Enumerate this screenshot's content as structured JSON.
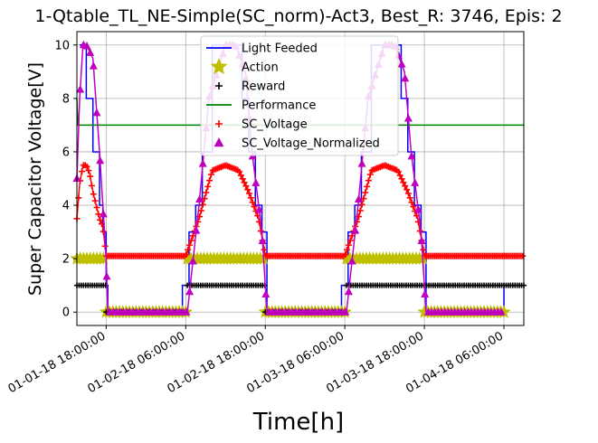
{
  "chart_data": {
    "type": "line",
    "title": "1-Qtable_TL_NE-Simple(SC_norm)-Act3, Best_R: 3746, Epis: 2",
    "xlabel": "Time[h]",
    "ylabel": "Super Capacitor Voltage[V]",
    "x_range": [
      "2018-01-01 13:35",
      "2018-01-04 09:00"
    ],
    "ylim": [
      -0.5,
      10.5
    ],
    "grid": true,
    "legend_position": "top-center",
    "x_tick_values": [
      "2018-01-01 18:00",
      "2018-01-02 06:00",
      "2018-01-02 18:00",
      "2018-01-03 06:00",
      "2018-01-03 18:00",
      "2018-01-04 06:00"
    ],
    "x_tick_labels": [
      "01-01-18 18:00:00",
      "01-02-18 06:00:00",
      "01-02-18 18:00:00",
      "01-03-18 06:00:00",
      "01-03-18 18:00:00",
      "01-04-18 06:00:00"
    ],
    "y_ticks": [
      0,
      2,
      4,
      6,
      8,
      10
    ],
    "series": [
      {
        "name": "Light Feeded",
        "color": "#0000ff",
        "style": "step",
        "x": [
          "2018-01-01 14:00",
          "2018-01-01 15:00",
          "2018-01-01 16:00",
          "2018-01-01 17:00",
          "2018-01-01 17:30",
          "2018-01-01 18:00",
          "2018-01-01 18:15",
          "2018-01-02 05:30",
          "2018-01-02 06:30",
          "2018-01-02 07:30",
          "2018-01-02 08:30",
          "2018-01-02 10:00",
          "2018-01-02 12:00",
          "2018-01-02 14:30",
          "2018-01-02 15:30",
          "2018-01-02 16:30",
          "2018-01-02 17:30",
          "2018-01-02 18:15",
          "2018-01-03 05:30",
          "2018-01-03 06:30",
          "2018-01-03 07:30",
          "2018-01-03 08:30",
          "2018-01-03 10:00",
          "2018-01-03 12:00",
          "2018-01-03 14:30",
          "2018-01-03 15:30",
          "2018-01-03 16:30",
          "2018-01-03 17:30",
          "2018-01-03 18:15",
          "2018-01-04 06:00"
        ],
        "y": [
          10,
          8,
          6,
          4,
          3,
          1,
          0,
          1,
          3,
          4,
          6,
          10,
          10,
          8,
          6,
          4,
          3,
          0,
          1,
          3,
          4,
          6,
          10,
          10,
          8,
          6,
          4,
          3,
          0,
          1
        ]
      },
      {
        "name": "Action",
        "color": "#bfbf00",
        "marker": "star",
        "segments": [
          {
            "from": "2018-01-01 13:35",
            "to": "2018-01-01 18:00",
            "y": 2
          },
          {
            "from": "2018-01-01 18:00",
            "to": "2018-01-02 06:15",
            "y": 0
          },
          {
            "from": "2018-01-02 06:15",
            "to": "2018-01-02 18:00",
            "y": 2
          },
          {
            "from": "2018-01-02 18:00",
            "to": "2018-01-03 06:15",
            "y": 0
          },
          {
            "from": "2018-01-03 06:15",
            "to": "2018-01-03 18:00",
            "y": 2
          },
          {
            "from": "2018-01-03 18:00",
            "to": "2018-01-04 06:15",
            "y": 0
          }
        ]
      },
      {
        "name": "Reward",
        "color": "#000000",
        "marker": "plus",
        "segments": [
          {
            "from": "2018-01-01 13:35",
            "to": "2018-01-01 18:00",
            "y": 1
          },
          {
            "from": "2018-01-01 18:00",
            "to": "2018-01-02 06:15",
            "y": 0
          },
          {
            "from": "2018-01-02 06:15",
            "to": "2018-01-02 18:00",
            "y": 1
          },
          {
            "from": "2018-01-02 18:00",
            "to": "2018-01-03 06:15",
            "y": 0
          },
          {
            "from": "2018-01-03 06:15",
            "to": "2018-01-03 18:00",
            "y": 1
          },
          {
            "from": "2018-01-03 18:00",
            "to": "2018-01-04 09:00",
            "y": 1
          }
        ]
      },
      {
        "name": "Performance",
        "color": "#008000",
        "style": "line",
        "x": [
          "2018-01-01 13:35",
          "2018-01-01 13:45",
          "2018-01-04 09:00"
        ],
        "y": [
          8,
          7,
          7
        ]
      },
      {
        "name": "SC_Voltage",
        "color": "#ff0000",
        "marker": "plus",
        "x": [
          "2018-01-01 13:35",
          "2018-01-01 14:00",
          "2018-01-01 14:30",
          "2018-01-01 15:00",
          "2018-01-01 15:30",
          "2018-01-01 16:00",
          "2018-01-01 16:30",
          "2018-01-01 17:00",
          "2018-01-01 17:30",
          "2018-01-01 18:00",
          "2018-01-02 06:00",
          "2018-01-02 08:00",
          "2018-01-02 10:00",
          "2018-01-02 12:00",
          "2018-01-02 14:00",
          "2018-01-02 15:30",
          "2018-01-02 17:00",
          "2018-01-02 18:00",
          "2018-01-03 06:00",
          "2018-01-03 08:00",
          "2018-01-03 10:00",
          "2018-01-03 12:00",
          "2018-01-03 14:00",
          "2018-01-03 15:30",
          "2018-01-03 17:00",
          "2018-01-03 18:00",
          "2018-01-04 09:00"
        ],
        "y": [
          3.5,
          4.8,
          5.5,
          5.5,
          5.2,
          4.5,
          4.0,
          3.5,
          3.2,
          2.1,
          2.1,
          3.5,
          5.3,
          5.5,
          5.3,
          4.5,
          3.5,
          2.1,
          2.1,
          3.5,
          5.3,
          5.5,
          5.3,
          4.5,
          3.5,
          2.1,
          2.1
        ]
      },
      {
        "name": "SC_Voltage_Normalized",
        "color": "#bf00bf",
        "marker": "triangle",
        "x": [
          "2018-01-01 13:35",
          "2018-01-01 14:00",
          "2018-01-01 14:30",
          "2018-01-01 15:00",
          "2018-01-01 16:00",
          "2018-01-01 17:00",
          "2018-01-01 17:30",
          "2018-01-01 18:00",
          "2018-01-01 18:15",
          "2018-01-02 06:15",
          "2018-01-02 08:00",
          "2018-01-02 09:30",
          "2018-01-02 12:00",
          "2018-01-02 13:30",
          "2018-01-02 15:00",
          "2018-01-02 16:00",
          "2018-01-02 17:30",
          "2018-01-02 18:15",
          "2018-01-03 06:15",
          "2018-01-03 08:00",
          "2018-01-03 09:30",
          "2018-01-03 12:00",
          "2018-01-03 13:30",
          "2018-01-03 15:00",
          "2018-01-03 16:00",
          "2018-01-03 17:30",
          "2018-01-03 18:15",
          "2018-01-04 06:00"
        ],
        "y": [
          5,
          8,
          10,
          10,
          9.5,
          6,
          4,
          2,
          0,
          0,
          4,
          8,
          10,
          10,
          9,
          6,
          3,
          0,
          0,
          4,
          8,
          10,
          10,
          9,
          6,
          3,
          0,
          0
        ]
      }
    ]
  }
}
